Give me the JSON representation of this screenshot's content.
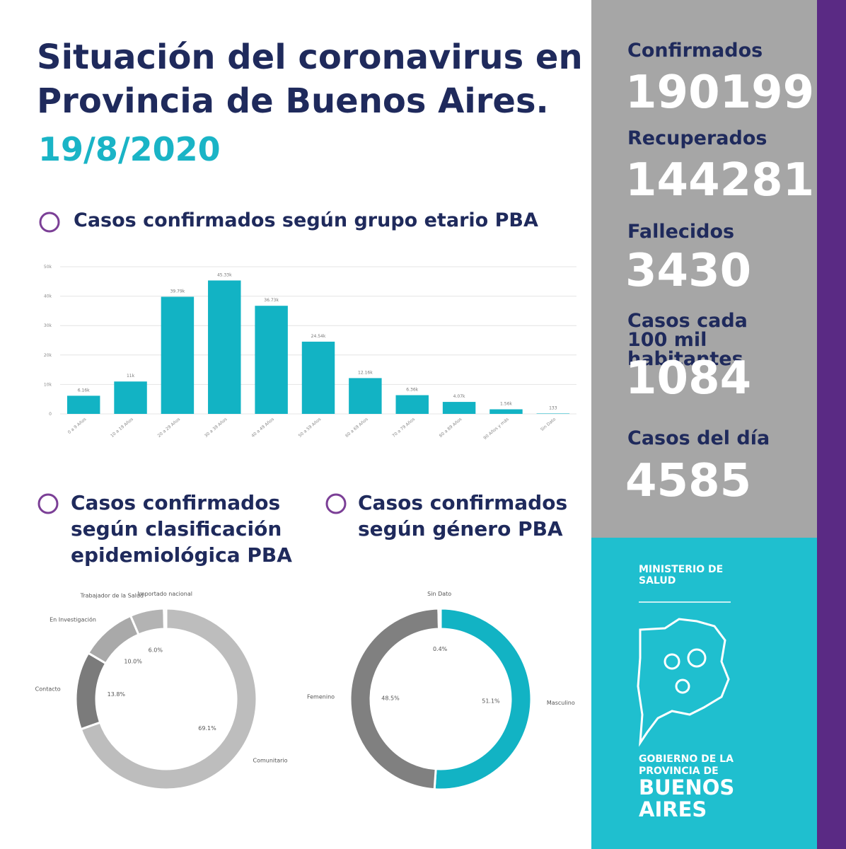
{
  "header": {
    "title_lines": [
      "Situación del coronavirus en",
      "Provincia de Buenos Aires."
    ],
    "date": "19/8/2020"
  },
  "chart_data": [
    {
      "type": "bar",
      "title": "Casos confirmados según grupo etario PBA",
      "categories": [
        "0 a 9 Años",
        "10 a 19 Años",
        "20 a 29 Años",
        "30 a 39 Años",
        "40 a 49 Años",
        "50 a 59 Años",
        "60 a 69 Años",
        "70 a 79 Años",
        "80 a 89 Años",
        "90 Años y más",
        "Sin Dato"
      ],
      "values": [
        6160,
        11000,
        39790,
        45330,
        36730,
        24540,
        12160,
        6360,
        4070,
        1560,
        133
      ],
      "value_labels": [
        "6.16k",
        "11k",
        "39.79k",
        "45.33k",
        "36.73k",
        "24.54k",
        "12.16k",
        "6.36k",
        "4.07k",
        "1.56k",
        "133"
      ],
      "color": "#12b3c4",
      "ylim": [
        0,
        50000
      ],
      "yticks": [
        0,
        {
          "value": 10000,
          "label": "10k"
        },
        {
          "value": 20000,
          "label": "20k"
        },
        {
          "value": 30000,
          "label": "30k"
        },
        {
          "value": 40000,
          "label": "40k"
        },
        {
          "value": 50000,
          "label": "50k"
        }
      ],
      "grid": true
    },
    {
      "type": "donut",
      "title": "Casos confirmados según clasificación epidemiológica PBA",
      "categories": [
        "Comunitario",
        "Contacto",
        "En Investigación",
        "Trabajador de la Salud",
        "Importado nacional"
      ],
      "values": [
        69.1,
        13.8,
        10.0,
        6.0,
        0.4
      ],
      "value_labels": [
        "69.1%",
        "13.8%",
        "10.0%",
        "6.0%",
        null
      ],
      "colors": [
        "#bdbdbd",
        "#7b7b7b",
        "#a9a9a9",
        "#b3b3b3",
        "#d6d6d6"
      ]
    },
    {
      "type": "donut",
      "title": "Casos confirmados según género PBA",
      "categories": [
        "Masculino",
        "Femenino",
        "Sin Dato"
      ],
      "values": [
        51.1,
        48.5,
        0.4
      ],
      "value_labels": [
        "51.1%",
        "48.5%",
        "0.4%"
      ],
      "colors": [
        "#12b3c4",
        "#808080",
        "#d0d0d0"
      ]
    }
  ],
  "stats": [
    {
      "label": "Confirmados",
      "value": 190199
    },
    {
      "label": "Recuperados",
      "value": 144281
    },
    {
      "label": "Fallecidos",
      "value": 3430
    },
    {
      "label": "Casos cada 100 mil habitantes",
      "value": 1084
    },
    {
      "label": "Casos del día",
      "value": 4585
    }
  ],
  "footer": {
    "ministry": "MINISTERIO DE SALUD",
    "government": "GOBIERNO DE LA PROVINCIA DE",
    "province": "BUENOS AIRES"
  }
}
